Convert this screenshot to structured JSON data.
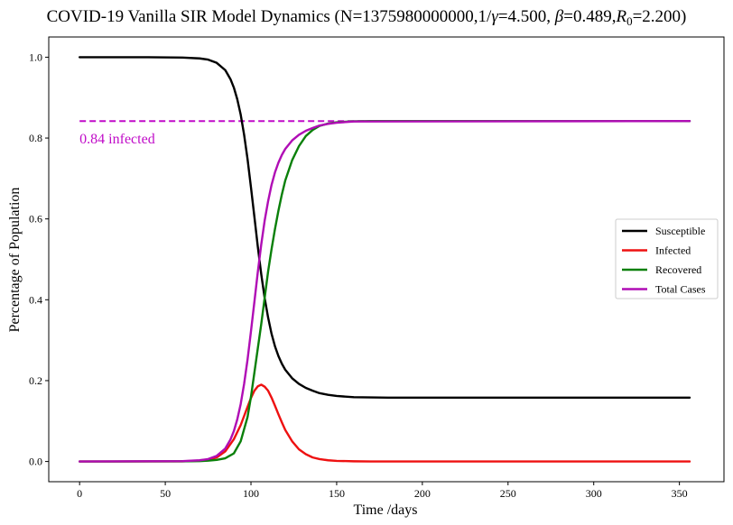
{
  "chart_data": {
    "type": "line",
    "title_parts": {
      "prefix": "COVID-19 Vanilla SIR Model Dynamics (N=1375980000000,1/",
      "gamma_symbol": "γ",
      "gamma_value": "=4.500, ",
      "beta_symbol": "β",
      "beta_value": "=0.489,",
      "r_symbol": "R",
      "r_subscript": "0",
      "r_value": "=2.200)"
    },
    "xlabel": "Time /days",
    "ylabel": "Percentage of Population",
    "xlim": [
      -18,
      376
    ],
    "ylim": [
      -0.05,
      1.05
    ],
    "xticks": [
      0,
      50,
      100,
      150,
      200,
      250,
      300,
      350
    ],
    "xtick_labels": [
      "0",
      "50",
      "100",
      "150",
      "200",
      "250",
      "300",
      "350"
    ],
    "yticks": [
      0.0,
      0.2,
      0.4,
      0.6,
      0.8,
      1.0
    ],
    "ytick_labels": [
      "0.0",
      "0.2",
      "0.4",
      "0.6",
      "0.8",
      "1.0"
    ],
    "grid": false,
    "legend_position": "center-right",
    "series": [
      {
        "name": "Susceptible",
        "color": "#000000",
        "x": [
          0,
          40,
          60,
          70,
          75,
          80,
          85,
          88,
          90,
          92,
          94,
          96,
          98,
          100,
          102,
          104,
          106,
          108,
          110,
          112,
          114,
          116,
          118,
          120,
          124,
          128,
          132,
          136,
          140,
          145,
          150,
          160,
          180,
          356
        ],
        "y": [
          1.0,
          1.0,
          0.999,
          0.997,
          0.994,
          0.986,
          0.968,
          0.946,
          0.925,
          0.896,
          0.858,
          0.808,
          0.748,
          0.678,
          0.605,
          0.531,
          0.463,
          0.404,
          0.356,
          0.316,
          0.285,
          0.261,
          0.242,
          0.227,
          0.206,
          0.192,
          0.182,
          0.175,
          0.169,
          0.165,
          0.162,
          0.159,
          0.158,
          0.158
        ]
      },
      {
        "name": "Infected",
        "color": "#ee1111",
        "x": [
          0,
          60,
          70,
          75,
          80,
          85,
          90,
          94,
          98,
          100,
          102,
          104,
          106,
          108,
          110,
          112,
          114,
          116,
          118,
          120,
          124,
          128,
          132,
          136,
          140,
          145,
          150,
          160,
          170,
          356
        ],
        "y": [
          0.0,
          0.0005,
          0.002,
          0.004,
          0.01,
          0.025,
          0.055,
          0.09,
          0.135,
          0.157,
          0.175,
          0.186,
          0.19,
          0.185,
          0.175,
          0.158,
          0.138,
          0.117,
          0.097,
          0.078,
          0.05,
          0.03,
          0.018,
          0.01,
          0.006,
          0.003,
          0.0015,
          0.0005,
          0.0001,
          0.0
        ]
      },
      {
        "name": "Recovered",
        "color": "#0a800a",
        "x": [
          0,
          60,
          70,
          75,
          80,
          85,
          90,
          94,
          98,
          100,
          102,
          104,
          106,
          108,
          110,
          112,
          114,
          116,
          118,
          120,
          124,
          128,
          132,
          136,
          140,
          145,
          150,
          160,
          170,
          356
        ],
        "y": [
          0.0,
          0.0005,
          0.001,
          0.002,
          0.004,
          0.008,
          0.02,
          0.05,
          0.11,
          0.16,
          0.22,
          0.28,
          0.34,
          0.405,
          0.47,
          0.525,
          0.575,
          0.62,
          0.66,
          0.695,
          0.745,
          0.78,
          0.805,
          0.82,
          0.83,
          0.836,
          0.839,
          0.8415,
          0.842,
          0.842
        ]
      },
      {
        "name": "Total Cases",
        "color": "#b00db5",
        "x": [
          0,
          60,
          70,
          75,
          80,
          85,
          88,
          90,
          92,
          94,
          96,
          98,
          100,
          102,
          104,
          106,
          108,
          110,
          112,
          114,
          116,
          118,
          120,
          124,
          128,
          132,
          136,
          140,
          145,
          150,
          160,
          356
        ],
        "y": [
          0.0,
          0.001,
          0.003,
          0.006,
          0.014,
          0.032,
          0.054,
          0.075,
          0.104,
          0.142,
          0.192,
          0.252,
          0.322,
          0.395,
          0.469,
          0.537,
          0.596,
          0.644,
          0.684,
          0.715,
          0.739,
          0.758,
          0.773,
          0.794,
          0.808,
          0.818,
          0.825,
          0.831,
          0.835,
          0.838,
          0.841,
          0.842
        ]
      }
    ],
    "reference_line": {
      "y": 0.842,
      "x_start": 0,
      "x_end": 356,
      "color": "#c00bc8",
      "style": "dashed"
    },
    "annotation": {
      "text": "0.84 infected",
      "x": 0,
      "y": 0.805,
      "color": "#c00bc8"
    }
  }
}
